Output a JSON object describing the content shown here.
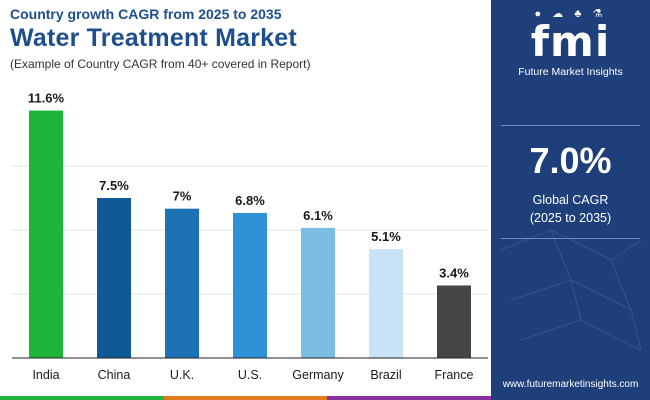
{
  "header": {
    "subtitle": "Country growth CAGR from 2025 to 2035",
    "title": "Water Treatment Market",
    "note": "(Example of Country CAGR from 40+ covered in Report)"
  },
  "chart_data": {
    "type": "bar",
    "title": "Water Treatment Market",
    "categories": [
      "India",
      "China",
      "U.K.",
      "U.S.",
      "Germany",
      "Brazil",
      "France"
    ],
    "values": [
      11.6,
      7.5,
      7,
      6.8,
      6.1,
      5.1,
      3.4
    ],
    "labels": [
      "11.6%",
      "7.5%",
      "7%",
      "6.8%",
      "6.1%",
      "5.1%",
      "3.4%"
    ],
    "colors": [
      "#1db53a",
      "#0f5a96",
      "#1c72b3",
      "#2f91d6",
      "#7cbde6",
      "#c8e3f5",
      "#454545"
    ],
    "ylim": [
      0,
      12
    ],
    "grid": true,
    "xlabel": "",
    "ylabel": ""
  },
  "panel": {
    "logo_mark": "fmi",
    "logo_icons": "● ☁ ♣ ⚗",
    "logo_text": "Future Market Insights",
    "cagr_value": "7.0%",
    "cagr_label_1": "Global CAGR",
    "cagr_label_2": "(2025 to 2035)",
    "website": "www.futuremarketinsights.com",
    "background_color": "#1f3f7a"
  },
  "footer": {
    "strip_colors": [
      "#1db53a",
      "#e07b1a",
      "#8a2fa0"
    ]
  }
}
